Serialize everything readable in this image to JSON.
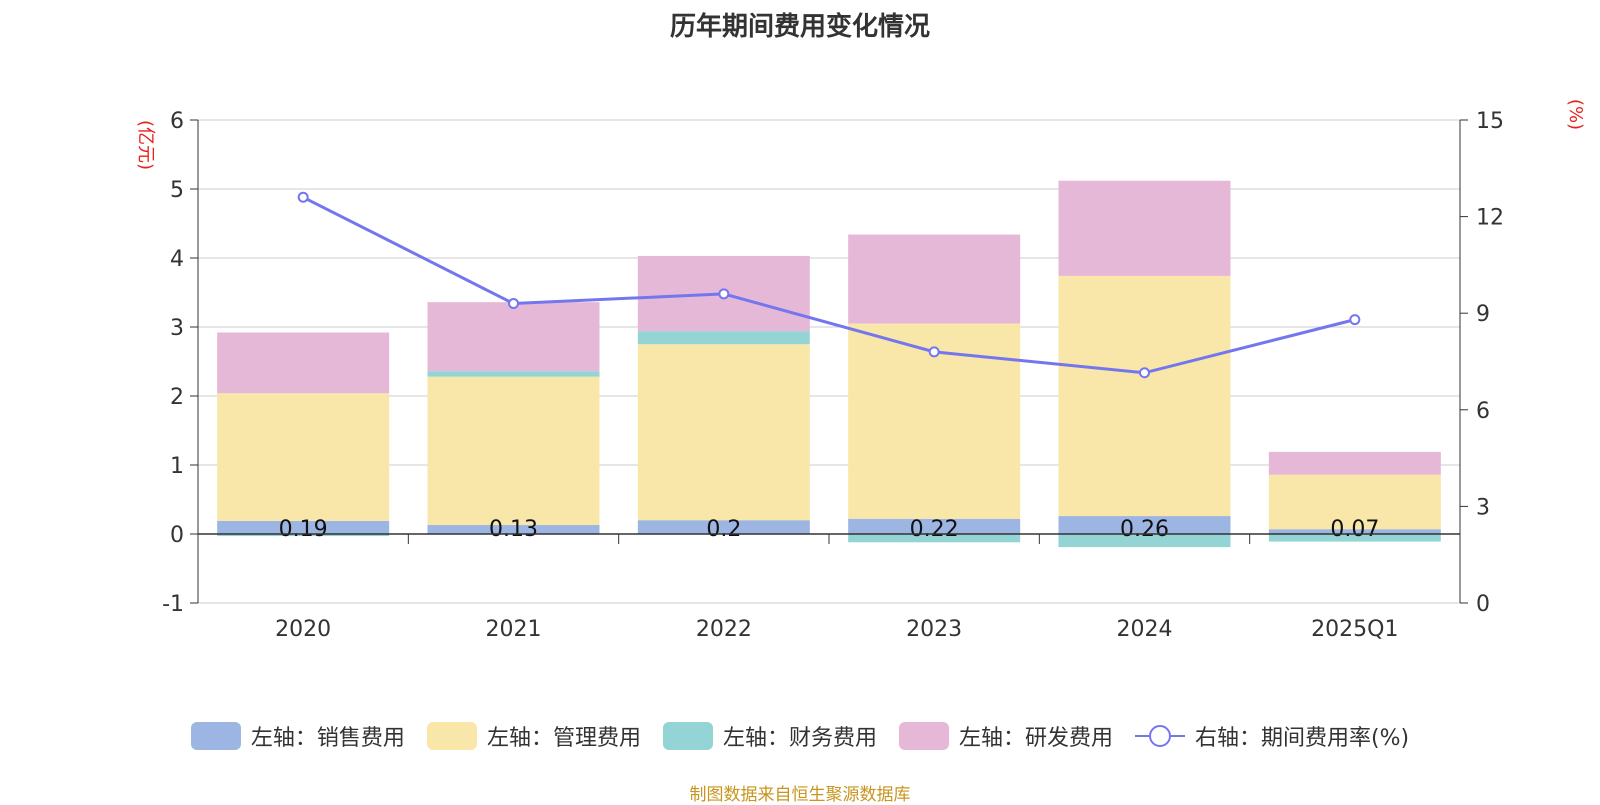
{
  "chart_data": {
    "type": "bar",
    "title": "历年期间费用变化情况",
    "categories": [
      "2020",
      "2021",
      "2022",
      "2023",
      "2024",
      "2025Q1"
    ],
    "left_axis": {
      "unit": "(亿元)",
      "ylim": [
        -1,
        6
      ],
      "ticks": [
        -1,
        0,
        1,
        2,
        3,
        4,
        5,
        6
      ]
    },
    "right_axis": {
      "unit": "(%)",
      "ylim": [
        0,
        15
      ],
      "ticks": [
        0,
        3,
        6,
        9,
        12,
        15
      ]
    },
    "series": [
      {
        "name": "左轴：销售费用",
        "axis": "left",
        "color": "#9db5e2",
        "values": [
          0.19,
          0.13,
          0.2,
          0.22,
          0.26,
          0.07
        ]
      },
      {
        "name": "左轴：管理费用",
        "axis": "left",
        "color": "#f8e7a8",
        "values": [
          1.85,
          2.15,
          2.55,
          2.83,
          3.48,
          0.79
        ]
      },
      {
        "name": "左轴：财务费用",
        "axis": "left",
        "color": "#95d4d4",
        "values": [
          -0.03,
          0.08,
          0.19,
          -0.12,
          -0.19,
          -0.11
        ]
      },
      {
        "name": "左轴：研发费用",
        "axis": "left",
        "color": "#e6b8d8",
        "values": [
          0.88,
          1.0,
          1.09,
          1.29,
          1.38,
          0.33
        ]
      },
      {
        "name": "右轴：期间费用率(%)",
        "axis": "right",
        "type": "line",
        "color": "#7476ee",
        "values": [
          12.6,
          9.3,
          9.6,
          7.8,
          7.15,
          8.8
        ]
      }
    ],
    "data_labels": [
      "0.19",
      "0.13",
      "0.2",
      "0.22",
      "0.26",
      "0.07"
    ],
    "grid": true,
    "legend_position": "bottom"
  },
  "source": "制图数据来自恒生聚源数据库"
}
